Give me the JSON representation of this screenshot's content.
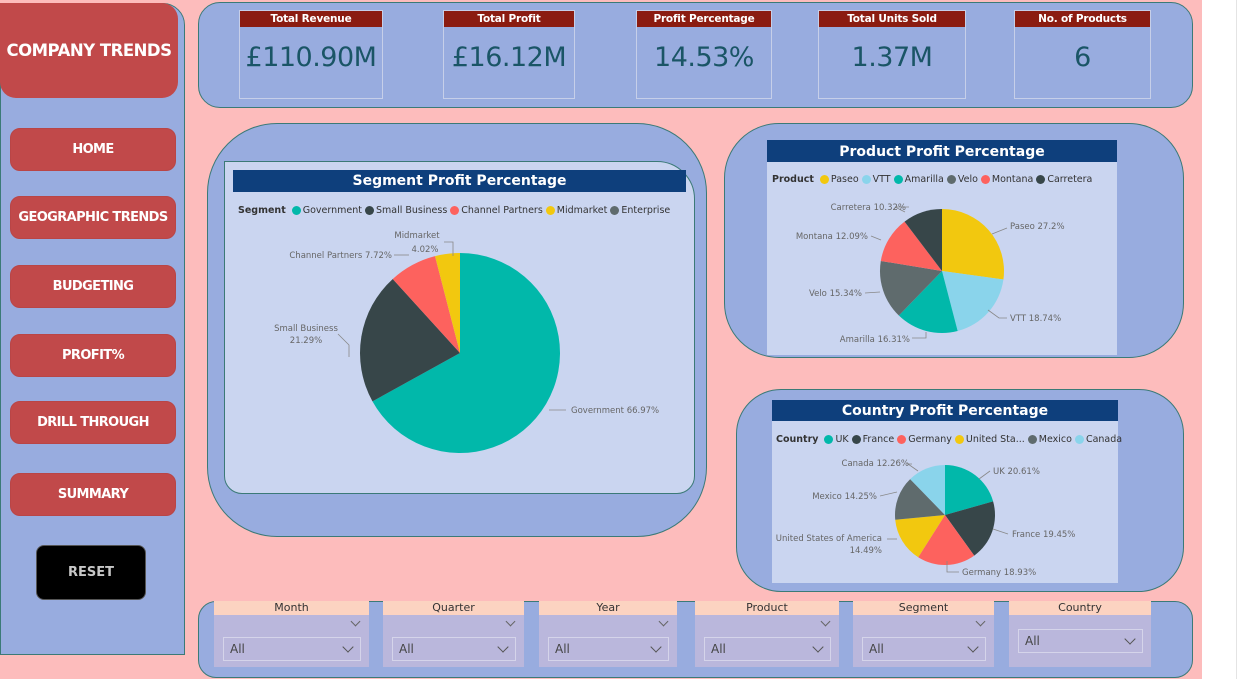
{
  "brand": "COMPANY TRENDS",
  "nav": [
    "HOME",
    "GEOGRAPHIC TRENDS",
    "BUDGETING",
    "PROFIT%",
    "DRILL THROUGH",
    "SUMMARY"
  ],
  "reset_label": "RESET",
  "kpis": [
    {
      "title": "Total Revenue",
      "value": "£110.90M"
    },
    {
      "title": "Total Profit",
      "value": "£16.12M"
    },
    {
      "title": "Profit Percentage",
      "value": "14.53%"
    },
    {
      "title": "Total Units Sold",
      "value": "1.37M"
    },
    {
      "title": "No. of Products",
      "value": "6"
    }
  ],
  "colors": {
    "teal": "#01b8aa",
    "dark": "#374649",
    "red": "#fd625e",
    "yellow": "#f2c80f",
    "grey": "#5f6b6d",
    "lightblue": "#8ad4eb",
    "title_bar": "#0e3f7c",
    "nav": "#c1494a",
    "kpi_title": "#8b1c11"
  },
  "chart_data": [
    {
      "type": "pie",
      "title": "Segment Profit Percentage",
      "legend_title": "Segment",
      "legend": [
        "Government",
        "Small Business",
        "Channel Partners",
        "Midmarket",
        "Enterprise"
      ],
      "categories": [
        "Government",
        "Small Business",
        "Channel Partners",
        "Midmarket"
      ],
      "values": [
        66.97,
        21.29,
        7.72,
        4.02
      ],
      "labels": [
        "Government 66.97%",
        "Small Business",
        "21.29%",
        "Channel Partners 7.72%",
        "Midmarket",
        "4.02%"
      ]
    },
    {
      "type": "pie",
      "title": "Product Profit Percentage",
      "legend_title": "Product",
      "legend": [
        "Paseo",
        "VTT",
        "Amarilla",
        "Velo",
        "Montana",
        "Carretera"
      ],
      "categories": [
        "Paseo",
        "VTT",
        "Amarilla",
        "Velo",
        "Montana",
        "Carretera"
      ],
      "values": [
        27.2,
        18.74,
        16.31,
        15.34,
        12.09,
        10.32
      ],
      "labels": [
        "Paseo 27.2%",
        "VTT 18.74%",
        "Amarilla 16.31%",
        "Velo 15.34%",
        "Montana 12.09%",
        "Carretera 10.32%"
      ]
    },
    {
      "type": "pie",
      "title": "Country Profit Percentage",
      "legend_title": "Country",
      "legend": [
        "UK",
        "France",
        "Germany",
        "United Sta...",
        "Mexico",
        "Canada"
      ],
      "categories": [
        "UK",
        "France",
        "Germany",
        "United States of America",
        "Mexico",
        "Canada"
      ],
      "values": [
        20.61,
        19.45,
        18.93,
        14.49,
        14.25,
        12.26
      ],
      "labels": [
        "UK 20.61%",
        "France 19.45%",
        "Germany 18.93%",
        "United States of America",
        "14.49%",
        "Mexico 14.25%",
        "Canada 12.26%"
      ]
    }
  ],
  "slicers": [
    {
      "label": "Month",
      "value": "All"
    },
    {
      "label": "Quarter",
      "value": "All"
    },
    {
      "label": "Year",
      "value": "All"
    },
    {
      "label": "Product",
      "value": "All"
    },
    {
      "label": "Segment",
      "value": "All"
    },
    {
      "label": "Country",
      "value": "All"
    }
  ]
}
